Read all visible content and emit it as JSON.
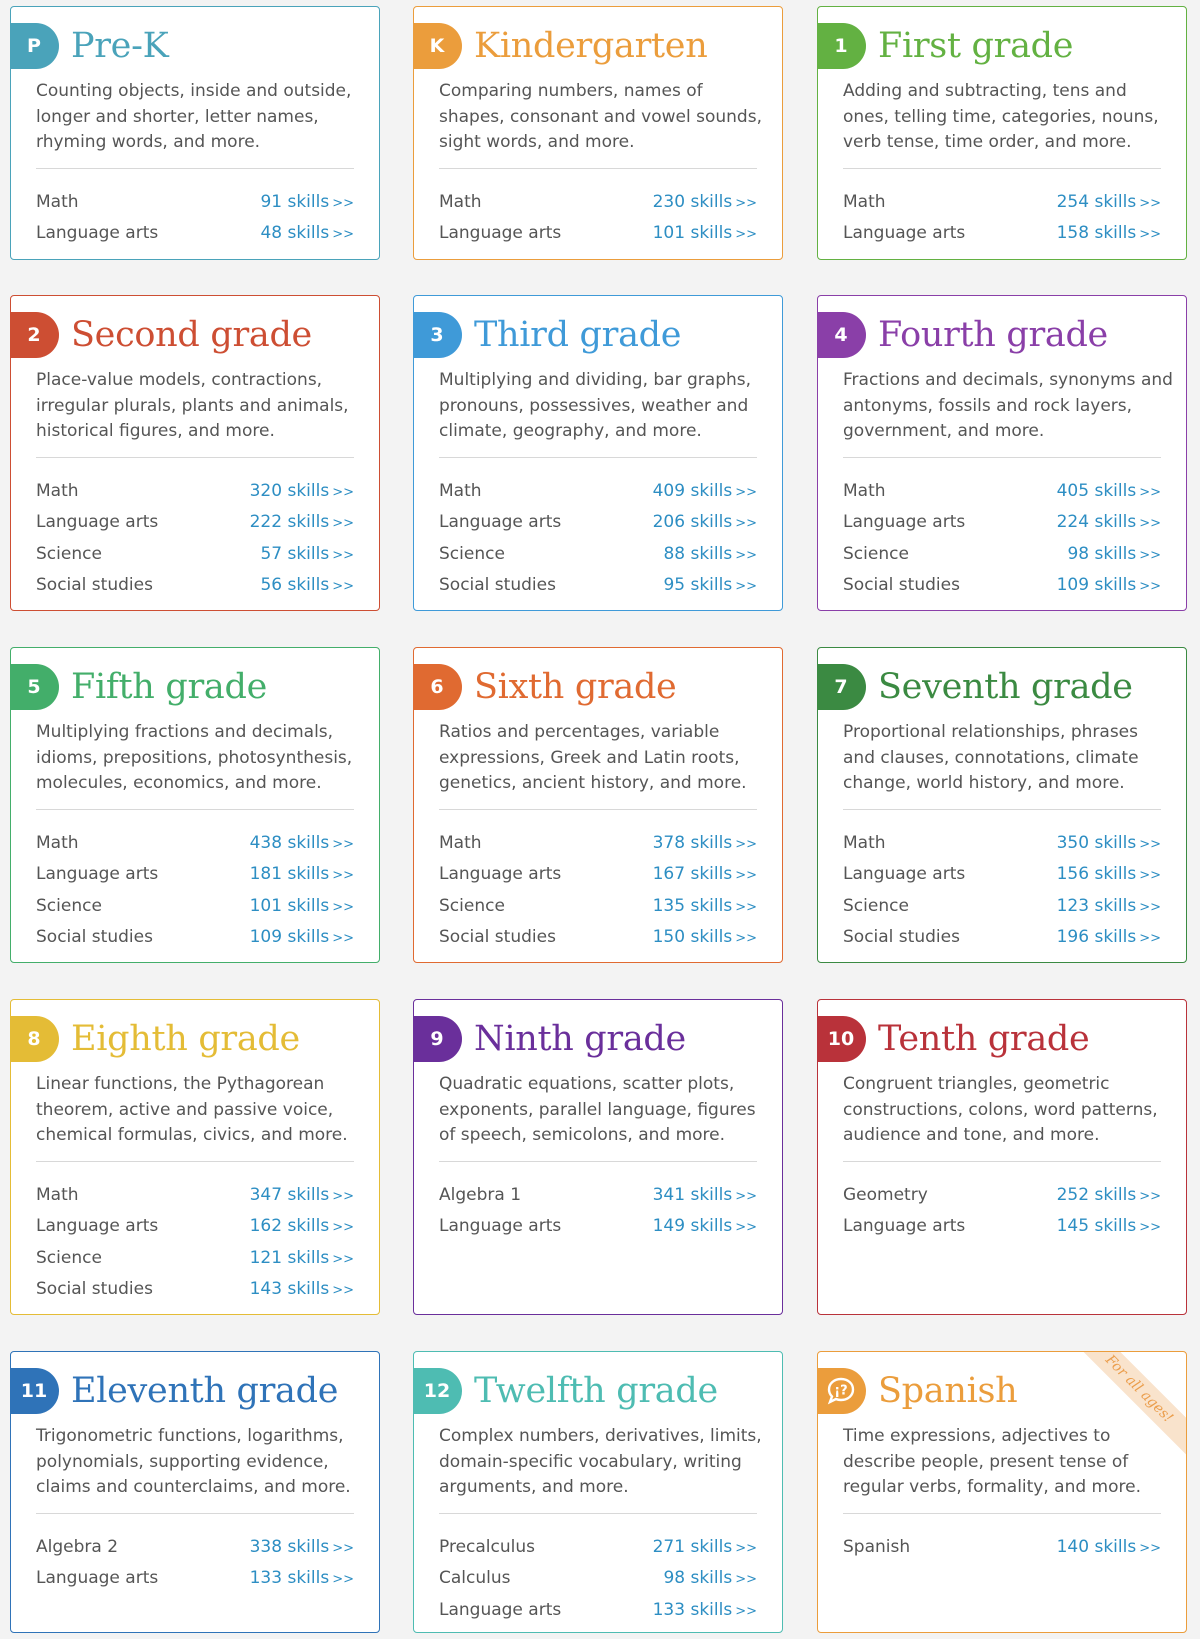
{
  "grades": [
    {
      "badge": "P",
      "title": "Pre-K",
      "color": "#4aa3ba",
      "description": "Counting objects, inside and outside, longer and shorter, letter names, rhyming words, and more.",
      "skills": [
        {
          "subject": "Math",
          "count": "91 skills"
        },
        {
          "subject": "Language arts",
          "count": "48 skills"
        }
      ]
    },
    {
      "badge": "K",
      "title": "Kindergarten",
      "color": "#eb9d3c",
      "description": "Comparing numbers, names of shapes, consonant and vowel sounds, sight words, and more.",
      "skills": [
        {
          "subject": "Math",
          "count": "230 skills"
        },
        {
          "subject": "Language arts",
          "count": "101 skills"
        }
      ]
    },
    {
      "badge": "1",
      "title": "First grade",
      "color": "#63b142",
      "description": "Adding and subtracting, tens and ones, telling time, categories, nouns, verb tense, time order, and more.",
      "skills": [
        {
          "subject": "Math",
          "count": "254 skills"
        },
        {
          "subject": "Language arts",
          "count": "158 skills"
        }
      ]
    },
    {
      "badge": "2",
      "title": "Second grade",
      "color": "#cd4e33",
      "description": "Place-value models, contractions, irregular plurals, plants and animals, historical figures, and more.",
      "skills": [
        {
          "subject": "Math",
          "count": "320 skills"
        },
        {
          "subject": "Language arts",
          "count": "222 skills"
        },
        {
          "subject": "Science",
          "count": "57 skills"
        },
        {
          "subject": "Social studies",
          "count": "56 skills"
        }
      ]
    },
    {
      "badge": "3",
      "title": "Third grade",
      "color": "#3f9ad8",
      "description": "Multiplying and dividing, bar graphs, pronouns, possessives, weather and climate, geography, and more.",
      "skills": [
        {
          "subject": "Math",
          "count": "409 skills"
        },
        {
          "subject": "Language arts",
          "count": "206 skills"
        },
        {
          "subject": "Science",
          "count": "88 skills"
        },
        {
          "subject": "Social studies",
          "count": "95 skills"
        }
      ]
    },
    {
      "badge": "4",
      "title": "Fourth grade",
      "color": "#8a3fa8",
      "description": "Fractions and decimals, synonyms and antonyms, fossils and rock layers, government, and more.",
      "skills": [
        {
          "subject": "Math",
          "count": "405 skills"
        },
        {
          "subject": "Language arts",
          "count": "224 skills"
        },
        {
          "subject": "Science",
          "count": "98 skills"
        },
        {
          "subject": "Social studies",
          "count": "109 skills"
        }
      ]
    },
    {
      "badge": "5",
      "title": "Fifth grade",
      "color": "#43ae6a",
      "description": "Multiplying fractions and decimals, idioms, prepositions, photosynthesis, molecules, economics, and more.",
      "skills": [
        {
          "subject": "Math",
          "count": "438 skills"
        },
        {
          "subject": "Language arts",
          "count": "181 skills"
        },
        {
          "subject": "Science",
          "count": "101 skills"
        },
        {
          "subject": "Social studies",
          "count": "109 skills"
        }
      ]
    },
    {
      "badge": "6",
      "title": "Sixth grade",
      "color": "#e06a31",
      "description": "Ratios and percentages, variable expressions, Greek and Latin roots, genetics, ancient history, and more.",
      "skills": [
        {
          "subject": "Math",
          "count": "378 skills"
        },
        {
          "subject": "Language arts",
          "count": "167 skills"
        },
        {
          "subject": "Science",
          "count": "135 skills"
        },
        {
          "subject": "Social studies",
          "count": "150 skills"
        }
      ]
    },
    {
      "badge": "7",
      "title": "Seventh grade",
      "color": "#3b8a42",
      "description": "Proportional relationships, phrases and clauses, connotations, climate change, world history, and more.",
      "skills": [
        {
          "subject": "Math",
          "count": "350 skills"
        },
        {
          "subject": "Language arts",
          "count": "156 skills"
        },
        {
          "subject": "Science",
          "count": "123 skills"
        },
        {
          "subject": "Social studies",
          "count": "196 skills"
        }
      ]
    },
    {
      "badge": "8",
      "title": "Eighth grade",
      "color": "#e4bc36",
      "description": "Linear functions, the Pythagorean theorem, active and passive voice, chemical formulas, civics, and more.",
      "skills": [
        {
          "subject": "Math",
          "count": "347 skills"
        },
        {
          "subject": "Language arts",
          "count": "162 skills"
        },
        {
          "subject": "Science",
          "count": "121 skills"
        },
        {
          "subject": "Social studies",
          "count": "143 skills"
        }
      ]
    },
    {
      "badge": "9",
      "title": "Ninth grade",
      "color": "#6a2f9b",
      "description": "Quadratic equations, scatter plots, exponents, parallel language, figures of speech, semicolons, and more.",
      "skills": [
        {
          "subject": "Algebra 1",
          "count": "341 skills"
        },
        {
          "subject": "Language arts",
          "count": "149 skills"
        }
      ]
    },
    {
      "badge": "10",
      "title": "Tenth grade",
      "color": "#b9323a",
      "description": "Congruent triangles, geometric constructions, colons, word patterns, audience and tone, and more.",
      "skills": [
        {
          "subject": "Geometry",
          "count": "252 skills"
        },
        {
          "subject": "Language arts",
          "count": "145 skills"
        }
      ]
    },
    {
      "badge": "11",
      "title": "Eleventh grade",
      "color": "#2f73b8",
      "description": "Trigonometric functions, logarithms, polynomials, supporting evidence, claims and counterclaims, and more.",
      "skills": [
        {
          "subject": "Algebra 2",
          "count": "338 skills"
        },
        {
          "subject": "Language arts",
          "count": "133 skills"
        }
      ]
    },
    {
      "badge": "12",
      "title": "Twelfth grade",
      "color": "#4ebcb2",
      "description": "Complex numbers, derivatives, limits, domain-specific vocabulary, writing arguments, and more.",
      "skills": [
        {
          "subject": "Precalculus",
          "count": "271 skills"
        },
        {
          "subject": "Calculus",
          "count": "98 skills"
        },
        {
          "subject": "Language arts",
          "count": "133 skills"
        }
      ]
    },
    {
      "badge": "",
      "badge_icon": "speech-bubble-icon",
      "title": "Spanish",
      "color": "#eb9d3c",
      "ribbon": "For all ages!",
      "description": "Time expressions, adjectives to describe people, present tense of regular verbs, formality, and more.",
      "skills": [
        {
          "subject": "Spanish",
          "count": "140 skills"
        }
      ]
    }
  ],
  "arrow": ">>",
  "colors": {
    "link": "#2d8ec3",
    "text": "#555555",
    "page_bg": "#f3f3f3"
  }
}
